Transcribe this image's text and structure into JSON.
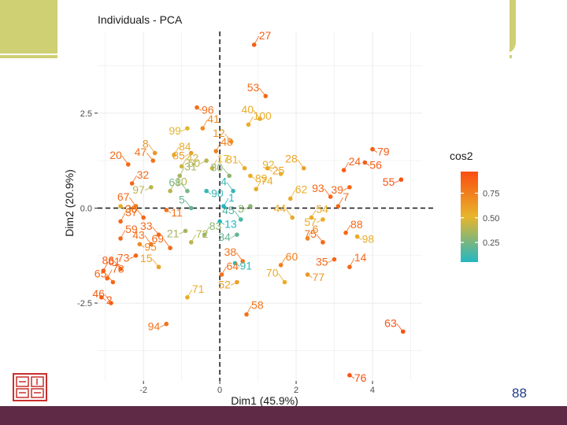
{
  "slide": {
    "page_number": "88",
    "colors": {
      "olive": "#cfcf74",
      "maroon": "#5e2a45",
      "page_number": "#1f3b8a"
    },
    "logo_icon": "red-seal-logo-icon"
  },
  "chart_data": {
    "type": "scatter",
    "title": "Individuals - PCA",
    "xlabel": "Dim1 (45.9%)",
    "ylabel": "Dim2 (20.9%)",
    "xlim": [
      -3.2,
      5.3
    ],
    "ylim": [
      -4.55,
      4.65
    ],
    "x_ticks": [
      -2,
      0,
      2,
      4
    ],
    "x_tick_labels": [
      "-2",
      "0",
      "2",
      "4"
    ],
    "y_ticks": [
      -2.5,
      0.0,
      2.5
    ],
    "y_tick_labels": [
      "-2.5",
      "0.0",
      "2.5"
    ],
    "legend": {
      "title": "cos2",
      "ticks": [
        0.25,
        0.5,
        0.75
      ],
      "tick_labels": [
        "0.25",
        "0.50",
        "0.75"
      ],
      "range": [
        0.05,
        0.97
      ],
      "colors": [
        "#22b7c4",
        "#e8b52b",
        "#fa4d10"
      ],
      "position": "right"
    },
    "points": [
      {
        "label": "27",
        "x": 0.9,
        "y": 4.3,
        "c": 0.9
      },
      {
        "label": "53",
        "x": 1.2,
        "y": 2.95,
        "c": 0.85
      },
      {
        "label": "96",
        "x": -0.6,
        "y": 2.65,
        "c": 0.82
      },
      {
        "label": "40",
        "x": 1.05,
        "y": 2.35,
        "c": 0.55
      },
      {
        "label": "100",
        "x": 0.75,
        "y": 2.2,
        "c": 0.55
      },
      {
        "label": "99",
        "x": -0.85,
        "y": 2.1,
        "c": 0.5
      },
      {
        "label": "41",
        "x": -0.45,
        "y": 2.1,
        "c": 0.7
      },
      {
        "label": "12",
        "x": 0.3,
        "y": 1.75,
        "c": 0.65
      },
      {
        "label": "79",
        "x": 4.0,
        "y": 1.55,
        "c": 0.9
      },
      {
        "label": "8",
        "x": -1.7,
        "y": 1.45,
        "c": 0.65
      },
      {
        "label": "84",
        "x": -1.2,
        "y": 1.4,
        "c": 0.55
      },
      {
        "label": "85",
        "x": -0.75,
        "y": 1.45,
        "c": 0.6
      },
      {
        "label": "48",
        "x": -0.1,
        "y": 1.5,
        "c": 0.75
      },
      {
        "label": "47",
        "x": -1.75,
        "y": 1.25,
        "c": 0.8
      },
      {
        "label": "56",
        "x": 3.8,
        "y": 1.2,
        "c": 0.9
      },
      {
        "label": "20",
        "x": -2.4,
        "y": 1.15,
        "c": 0.85
      },
      {
        "label": "42",
        "x": -1.0,
        "y": 1.1,
        "c": 0.45
      },
      {
        "label": "50",
        "x": -0.35,
        "y": 1.25,
        "c": 0.4
      },
      {
        "label": "17",
        "x": -0.2,
        "y": 1.05,
        "c": 0.5
      },
      {
        "label": "81",
        "x": 0.65,
        "y": 1.05,
        "c": 0.55
      },
      {
        "label": "25",
        "x": 1.25,
        "y": 1.05,
        "c": 0.6
      },
      {
        "label": "28",
        "x": 2.2,
        "y": 1.05,
        "c": 0.6
      },
      {
        "label": "24",
        "x": 3.25,
        "y": 1.0,
        "c": 0.9
      },
      {
        "label": "55",
        "x": 4.75,
        "y": 0.75,
        "c": 0.95
      },
      {
        "label": "31",
        "x": -1.05,
        "y": 0.85,
        "c": 0.35
      },
      {
        "label": "80",
        "x": 0.25,
        "y": 0.85,
        "c": 0.3
      },
      {
        "label": "89",
        "x": 0.8,
        "y": 0.85,
        "c": 0.55
      },
      {
        "label": "92",
        "x": 1.6,
        "y": 0.9,
        "c": 0.5
      },
      {
        "label": "32",
        "x": -2.3,
        "y": 0.65,
        "c": 0.85
      },
      {
        "label": "97",
        "x": -1.8,
        "y": 0.55,
        "c": 0.4
      },
      {
        "label": "10",
        "x": -1.3,
        "y": 0.45,
        "c": 0.4
      },
      {
        "label": "68",
        "x": -0.85,
        "y": 0.45,
        "c": 0.25
      },
      {
        "label": "90",
        "x": -0.35,
        "y": 0.45,
        "c": 0.1
      },
      {
        "label": "4",
        "x": 0.35,
        "y": 0.45,
        "c": 0.1
      },
      {
        "label": "74",
        "x": 0.95,
        "y": 0.5,
        "c": 0.55
      },
      {
        "label": "39",
        "x": 3.4,
        "y": 0.55,
        "c": 0.85
      },
      {
        "label": "62",
        "x": 1.85,
        "y": 0.25,
        "c": 0.55
      },
      {
        "label": "93",
        "x": 2.9,
        "y": 0.3,
        "c": 0.85
      },
      {
        "label": "30",
        "x": -2.6,
        "y": 0.05,
        "c": 0.55
      },
      {
        "label": "67",
        "x": -2.2,
        "y": 0.05,
        "c": 0.85
      },
      {
        "label": "1",
        "x": 0.1,
        "y": 0.05,
        "c": 0.05
      },
      {
        "label": "3",
        "x": 0.8,
        "y": 0.05,
        "c": 0.3
      },
      {
        "label": "7",
        "x": 3.1,
        "y": 0.05,
        "c": 0.85
      },
      {
        "label": "5",
        "x": -0.75,
        "y": 0.0,
        "c": 0.2
      },
      {
        "label": "11",
        "x": -1.4,
        "y": -0.05,
        "c": 0.8
      },
      {
        "label": "44",
        "x": 1.9,
        "y": -0.25,
        "c": 0.55
      },
      {
        "label": "54",
        "x": 2.4,
        "y": -0.25,
        "c": 0.55
      },
      {
        "label": "57",
        "x": 2.7,
        "y": -0.3,
        "c": 0.55
      },
      {
        "label": "37",
        "x": -2.6,
        "y": -0.35,
        "c": 0.85
      },
      {
        "label": "36",
        "x": -2.0,
        "y": -0.25,
        "c": 0.85
      },
      {
        "label": "13",
        "x": 0.0,
        "y": -0.35,
        "c": 0.05
      },
      {
        "label": "45",
        "x": 0.55,
        "y": -0.3,
        "c": 0.15
      },
      {
        "label": "88",
        "x": 3.3,
        "y": -0.65,
        "c": 0.85
      },
      {
        "label": "21",
        "x": -0.9,
        "y": -0.6,
        "c": 0.35
      },
      {
        "label": "59",
        "x": -2.6,
        "y": -0.8,
        "c": 0.85
      },
      {
        "label": "33",
        "x": -1.6,
        "y": -0.7,
        "c": 0.85
      },
      {
        "label": "95",
        "x": -2.1,
        "y": -0.95,
        "c": 0.7
      },
      {
        "label": "43",
        "x": -1.8,
        "y": -0.95,
        "c": 0.8
      },
      {
        "label": "83",
        "x": -0.4,
        "y": -0.7,
        "c": 0.3
      },
      {
        "label": "34",
        "x": 0.45,
        "y": -0.7,
        "c": 0.2
      },
      {
        "label": "6",
        "x": 2.3,
        "y": -0.8,
        "c": 0.7
      },
      {
        "label": "75",
        "x": 2.7,
        "y": -0.9,
        "c": 0.85
      },
      {
        "label": "98",
        "x": 3.6,
        "y": -0.75,
        "c": 0.55
      },
      {
        "label": "69",
        "x": -1.3,
        "y": -1.05,
        "c": 0.85
      },
      {
        "label": "72",
        "x": -0.75,
        "y": -0.9,
        "c": 0.4
      },
      {
        "label": "73",
        "x": -2.2,
        "y": -1.25,
        "c": 0.85
      },
      {
        "label": "61",
        "x": -3.05,
        "y": -1.65,
        "c": 0.9
      },
      {
        "label": "86",
        "x": -2.6,
        "y": -1.6,
        "c": 0.9
      },
      {
        "label": "91",
        "x": 0.4,
        "y": -1.45,
        "c": 0.1
      },
      {
        "label": "38",
        "x": 0.6,
        "y": -1.4,
        "c": 0.8
      },
      {
        "label": "60",
        "x": 1.6,
        "y": -1.5,
        "c": 0.75
      },
      {
        "label": "35",
        "x": 3.0,
        "y": -1.35,
        "c": 0.85
      },
      {
        "label": "14",
        "x": 3.4,
        "y": -1.55,
        "c": 0.85
      },
      {
        "label": "15",
        "x": -1.6,
        "y": -1.55,
        "c": 0.6
      },
      {
        "label": "77",
        "x": 2.3,
        "y": -1.75,
        "c": 0.65
      },
      {
        "label": "70",
        "x": 1.7,
        "y": -1.95,
        "c": 0.55
      },
      {
        "label": "64",
        "x": 0.05,
        "y": -1.75,
        "c": 0.8
      },
      {
        "label": "52",
        "x": 0.45,
        "y": -1.95,
        "c": 0.6
      },
      {
        "label": "78",
        "x": -2.95,
        "y": -1.85,
        "c": 0.85
      },
      {
        "label": "65",
        "x": -2.8,
        "y": -1.95,
        "c": 0.85
      },
      {
        "label": "2",
        "x": -3.1,
        "y": -2.35,
        "c": 0.9
      },
      {
        "label": "46",
        "x": -2.85,
        "y": -2.5,
        "c": 0.9
      },
      {
        "label": "71",
        "x": -0.85,
        "y": -2.35,
        "c": 0.55
      },
      {
        "label": "94",
        "x": -1.4,
        "y": -3.05,
        "c": 0.8
      },
      {
        "label": "58",
        "x": 0.7,
        "y": -2.8,
        "c": 0.8
      },
      {
        "label": "63",
        "x": 4.8,
        "y": -3.25,
        "c": 0.95
      },
      {
        "label": "76",
        "x": 3.4,
        "y": -4.4,
        "c": 0.95
      }
    ]
  }
}
